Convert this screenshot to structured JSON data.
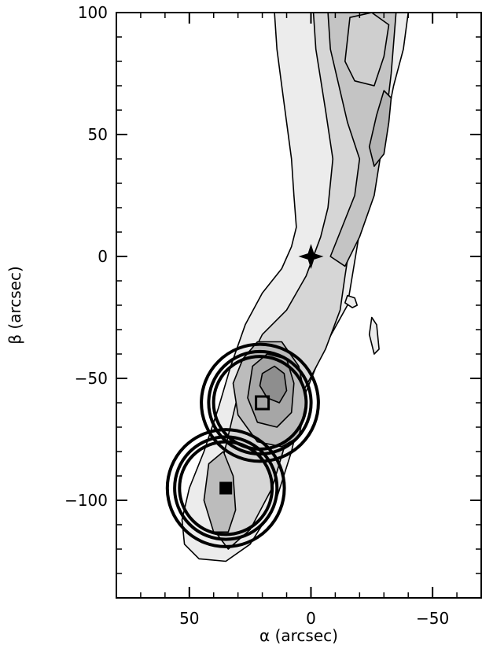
{
  "chart_data": {
    "type": "contour",
    "title": "",
    "xlabel": "α (arcsec)",
    "ylabel": "β (arcsec)",
    "xlim": [
      80,
      -70
    ],
    "ylim": [
      -140,
      100
    ],
    "x_ticks": [
      {
        "value": 50,
        "label": "50"
      },
      {
        "value": 0,
        "label": "0"
      },
      {
        "value": -50,
        "label": "−50"
      }
    ],
    "y_ticks": [
      {
        "value": 100,
        "label": "100"
      },
      {
        "value": 50,
        "label": "50"
      },
      {
        "value": 0,
        "label": "0"
      },
      {
        "value": -50,
        "label": "−50"
      },
      {
        "value": -100,
        "label": "−100"
      }
    ],
    "x_minor_step": 10,
    "y_minor_step": 10,
    "grid": false,
    "contours": [
      {
        "level": 1,
        "fill": "#ececec",
        "points": [
          [
            15,
            100
          ],
          [
            14,
            85
          ],
          [
            12,
            70
          ],
          [
            10,
            55
          ],
          [
            8,
            40
          ],
          [
            7,
            25
          ],
          [
            6,
            12
          ],
          [
            8,
            4
          ],
          [
            12,
            -5
          ],
          [
            20,
            -15
          ],
          [
            27,
            -28
          ],
          [
            33,
            -45
          ],
          [
            38,
            -62
          ],
          [
            44,
            -80
          ],
          [
            50,
            -95
          ],
          [
            53,
            -108
          ],
          [
            52,
            -118
          ],
          [
            46,
            -124
          ],
          [
            35,
            -125
          ],
          [
            25,
            -118
          ],
          [
            15,
            -102
          ],
          [
            8,
            -80
          ],
          [
            3,
            -58
          ],
          [
            -5,
            -38
          ],
          [
            -15,
            -20
          ],
          [
            -18,
            -2
          ],
          [
            -20,
            10
          ],
          [
            -24,
            30
          ],
          [
            -30,
            50
          ],
          [
            -34,
            70
          ],
          [
            -38,
            85
          ],
          [
            -40,
            100
          ]
        ]
      },
      {
        "level": 2,
        "fill": "#d6d6d6",
        "points": [
          [
            -1,
            100
          ],
          [
            -2,
            85
          ],
          [
            -6,
            60
          ],
          [
            -9,
            40
          ],
          [
            -7,
            20
          ],
          [
            -4,
            8
          ],
          [
            2,
            -8
          ],
          [
            10,
            -22
          ],
          [
            20,
            -32
          ],
          [
            28,
            -48
          ],
          [
            32,
            -65
          ],
          [
            36,
            -82
          ],
          [
            40,
            -98
          ],
          [
            40,
            -112
          ],
          [
            34,
            -120
          ],
          [
            25,
            -112
          ],
          [
            16,
            -95
          ],
          [
            10,
            -75
          ],
          [
            3,
            -55
          ],
          [
            -6,
            -38
          ],
          [
            -12,
            -22
          ],
          [
            -14,
            -8
          ],
          [
            -16,
            5
          ],
          [
            -20,
            20
          ],
          [
            -22,
            40
          ],
          [
            -27,
            60
          ],
          [
            -30,
            80
          ],
          [
            -33,
            100
          ]
        ]
      },
      {
        "level": 3,
        "fill": "#c4c4c4",
        "points": [
          [
            -7,
            100
          ],
          [
            -8,
            85
          ],
          [
            -15,
            55
          ],
          [
            -20,
            40
          ],
          [
            -18,
            25
          ],
          [
            -12,
            10
          ],
          [
            -8,
            0
          ],
          [
            -14,
            -4
          ],
          [
            -20,
            8
          ],
          [
            -26,
            25
          ],
          [
            -30,
            50
          ],
          [
            -33,
            75
          ],
          [
            -35,
            100
          ]
        ]
      },
      {
        "level": 4,
        "fill": "#bcbcbc",
        "points": [
          [
            28,
            -42
          ],
          [
            22,
            -35
          ],
          [
            12,
            -35
          ],
          [
            5,
            -45
          ],
          [
            2,
            -60
          ],
          [
            5,
            -74
          ],
          [
            12,
            -78
          ],
          [
            22,
            -76
          ],
          [
            30,
            -65
          ],
          [
            32,
            -52
          ]
        ]
      },
      {
        "level": 5,
        "fill": "#a6a6a6",
        "points": [
          [
            24,
            -45
          ],
          [
            18,
            -40
          ],
          [
            10,
            -42
          ],
          [
            7,
            -52
          ],
          [
            8,
            -64
          ],
          [
            14,
            -70
          ],
          [
            22,
            -68
          ],
          [
            26,
            -58
          ]
        ]
      },
      {
        "level": 6,
        "fill": "#8e8e8e",
        "points": [
          [
            20,
            -48
          ],
          [
            15,
            -45
          ],
          [
            11,
            -48
          ],
          [
            10,
            -55
          ],
          [
            13,
            -60
          ],
          [
            18,
            -58
          ],
          [
            21,
            -53
          ]
        ]
      },
      {
        "level": 7,
        "fill": "#bcbcbc",
        "points": [
          [
            42,
            -85
          ],
          [
            36,
            -80
          ],
          [
            32,
            -90
          ],
          [
            31,
            -104
          ],
          [
            34,
            -113
          ],
          [
            40,
            -113
          ],
          [
            44,
            -100
          ]
        ]
      },
      {
        "level": 8,
        "fill": "#cfcfcf",
        "points": [
          [
            -14,
            80
          ],
          [
            -18,
            72
          ],
          [
            -26,
            70
          ],
          [
            -30,
            82
          ],
          [
            -32,
            95
          ],
          [
            -25,
            100
          ],
          [
            -16,
            98
          ]
        ]
      },
      {
        "level": 9,
        "fill": "#b3b3b3",
        "points": [
          [
            -24,
            45
          ],
          [
            -26,
            37
          ],
          [
            -30,
            42
          ],
          [
            -32,
            55
          ],
          [
            -33,
            65
          ],
          [
            -30,
            68
          ],
          [
            -27,
            58
          ]
        ]
      },
      {
        "level": 10,
        "fill": "#ececec",
        "points": [
          [
            -15,
            -16
          ],
          [
            -18,
            -17
          ],
          [
            -19,
            -20
          ],
          [
            -17,
            -21
          ],
          [
            -14,
            -19
          ]
        ]
      },
      {
        "level": 11,
        "fill": "#ececec",
        "points": [
          [
            -25,
            -25
          ],
          [
            -27,
            -28
          ],
          [
            -28,
            -38
          ],
          [
            -26,
            -40
          ],
          [
            -24,
            -32
          ]
        ]
      }
    ],
    "circles": [
      {
        "x": 21,
        "y": -60,
        "r": 24
      },
      {
        "x": 21,
        "y": -60,
        "r": 21
      },
      {
        "x": 21,
        "y": -60,
        "r": 19
      },
      {
        "x": 35,
        "y": -95,
        "r": 24
      },
      {
        "x": 35,
        "y": -95,
        "r": 21
      },
      {
        "x": 35,
        "y": -95,
        "r": 19
      }
    ],
    "markers": [
      {
        "type": "star",
        "x": 0,
        "y": 0
      },
      {
        "type": "open-square",
        "x": 20,
        "y": -60
      },
      {
        "type": "filled-square",
        "x": 35,
        "y": -95
      }
    ]
  }
}
